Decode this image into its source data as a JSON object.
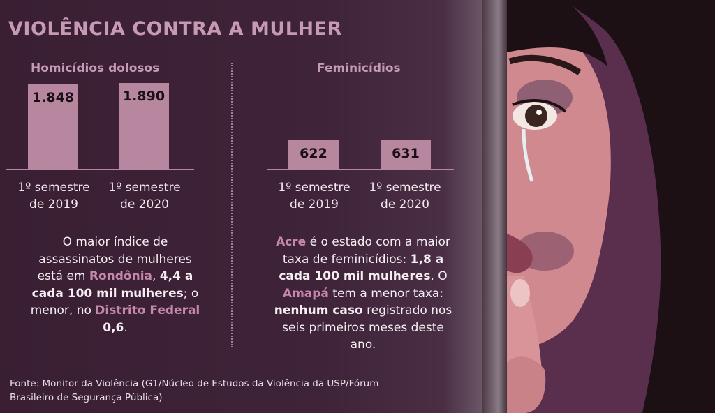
{
  "title": "VIOLÊNCIA CONTRA A MULHER",
  "chart_data": [
    {
      "type": "bar",
      "title": "Homicídios dolosos",
      "categories": [
        "1º semestre de 2019",
        "1º semestre de 2020"
      ],
      "categories_lines": [
        [
          "1º semestre",
          "de 2019"
        ],
        [
          "1º semestre",
          "de 2020"
        ]
      ],
      "values": [
        1848,
        1890
      ],
      "value_labels": [
        "1.848",
        "1.890"
      ],
      "ylim": [
        0,
        1900
      ]
    },
    {
      "type": "bar",
      "title": "Feminicídios",
      "categories": [
        "1º semestre de 2019",
        "1º semestre de 2020"
      ],
      "categories_lines": [
        [
          "1º semestre",
          "de 2019"
        ],
        [
          "1º semestre",
          "de 2020"
        ]
      ],
      "values": [
        622,
        631
      ],
      "value_labels": [
        "622",
        "631"
      ],
      "ylim": [
        0,
        1900
      ]
    }
  ],
  "notes": {
    "left": {
      "t1": "O maior índice de assassinatos de mulheres está em ",
      "state_max": "Rondônia",
      "t2": ", ",
      "rate_max": "4,4 a cada 100 mil mulheres",
      "t3": "; o menor, no ",
      "state_min": "Distrito Federal",
      "t4": " ",
      "rate_min": "0,6",
      "t5": "."
    },
    "right": {
      "state_max": "Acre",
      "t1": " é o estado com a maior taxa de feminicídios: ",
      "rate_max": "1,8 a cada 100 mil mulheres",
      "t2": ". O ",
      "state_min": "Amapá",
      "t3": " tem a menor taxa: ",
      "min_text": "nenhum caso",
      "t4": " registrado nos seis primeiros meses deste ano."
    }
  },
  "source": "Fonte: Monitor da Violência (G1/Núcleo de Estudos da Violência da USP/Fórum Brasileiro de Segurança Pública)",
  "colors": {
    "background": "#3f2338",
    "accent": "#c79ab4",
    "bar": "#b6879f",
    "highlight": "#c488aa"
  },
  "illustration": "woman-face-bruised-behind-door"
}
